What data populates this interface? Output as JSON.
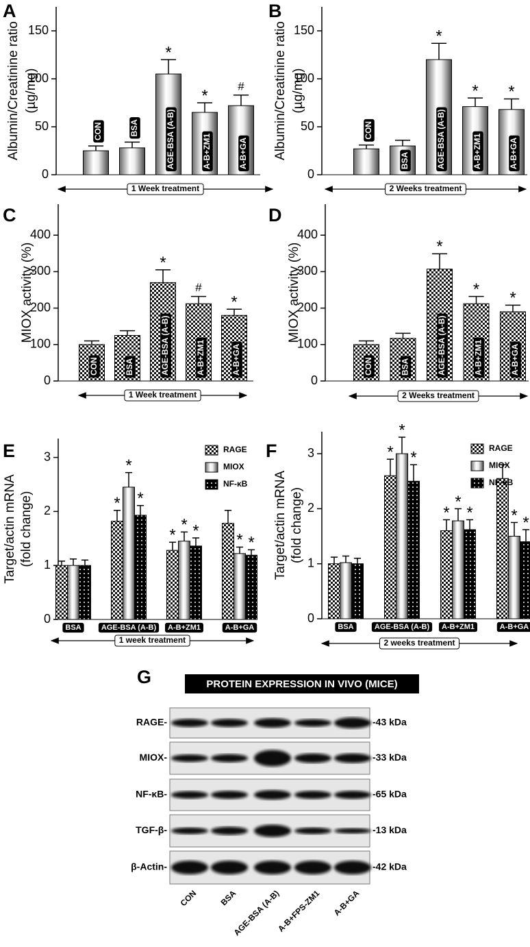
{
  "chart_data": [
    {
      "type": "bar",
      "panel": "A",
      "ylabel": [
        "Albumin/Creatinine ratio",
        "(µg/mg)"
      ],
      "categories": [
        "CON",
        "BSA",
        "AGE-BSA (A-B)",
        "A-B+ZM1",
        "A-B+GA"
      ],
      "values": [
        25,
        28,
        105,
        65,
        72
      ],
      "errors": [
        5,
        6,
        15,
        10,
        11
      ],
      "annotations": [
        null,
        null,
        "*",
        "*",
        "#"
      ],
      "pattern": "gradient",
      "ylim": [
        0,
        175
      ],
      "yticks": [
        0,
        50,
        100,
        150
      ],
      "treatment": "1 Week treatment"
    },
    {
      "type": "bar",
      "panel": "B",
      "ylabel": [
        "Albumin/Creatinine ratio",
        "(µg/mg)"
      ],
      "categories": [
        "CON",
        "BSA",
        "AGE-BSA (A-B)",
        "A-B+ZM1",
        "A-B+GA"
      ],
      "values": [
        27,
        30,
        120,
        71,
        68
      ],
      "errors": [
        4,
        6,
        17,
        9,
        11
      ],
      "annotations": [
        null,
        null,
        "*",
        "*",
        "*"
      ],
      "pattern": "gradient",
      "ylim": [
        0,
        175
      ],
      "yticks": [
        0,
        50,
        100,
        150
      ],
      "treatment": "2 Weeks treatment"
    },
    {
      "type": "bar",
      "panel": "C",
      "ylabel": [
        "MIOX activity (%)"
      ],
      "categories": [
        "CON",
        "BSA",
        "AGE-BSA (A-B)",
        "A-B+ZM1",
        "A-B+GA"
      ],
      "values": [
        100,
        125,
        270,
        212,
        180
      ],
      "errors": [
        10,
        13,
        35,
        20,
        17
      ],
      "annotations": [
        null,
        null,
        "*",
        "#",
        "*"
      ],
      "pattern": "checker",
      "ylim": [
        0,
        485
      ],
      "yticks": [
        0,
        100,
        200,
        300,
        400
      ],
      "treatment": "1 Week treatment"
    },
    {
      "type": "bar",
      "panel": "D",
      "ylabel": [
        "MIOX activity (%)"
      ],
      "categories": [
        "CON",
        "BSA",
        "AGE-BSA (A-B)",
        "A-B+ZM1",
        "A-B+GA"
      ],
      "values": [
        100,
        117,
        307,
        212,
        190
      ],
      "errors": [
        10,
        14,
        42,
        20,
        18
      ],
      "annotations": [
        null,
        null,
        "*",
        "*",
        "*"
      ],
      "pattern": "checker",
      "ylim": [
        0,
        485
      ],
      "yticks": [
        0,
        100,
        200,
        300,
        400
      ],
      "treatment": "2 Weeks treatment"
    },
    {
      "type": "grouped_bar",
      "panel": "E",
      "ylabel": [
        "Target/actin mRNA",
        "(fold change)"
      ],
      "categories": [
        "BSA",
        "AGE-BSA (A-B)",
        "A-B+ZM1",
        "A-B+GA"
      ],
      "ylim": [
        0,
        3.35
      ],
      "yticks": [
        0,
        1,
        2,
        3
      ],
      "treatment": "1 week treatment",
      "series": [
        {
          "name": "RAGE",
          "pattern": "checker",
          "values": [
            1.0,
            1.82,
            1.28,
            1.78
          ],
          "errors": [
            0.08,
            0.2,
            0.15,
            0.24
          ],
          "annotations": [
            null,
            "*",
            "*",
            null
          ]
        },
        {
          "name": "MIOX",
          "pattern": "gradient",
          "values": [
            1.0,
            2.45,
            1.45,
            1.22
          ],
          "errors": [
            0.12,
            0.27,
            0.17,
            0.12
          ],
          "annotations": [
            null,
            "*",
            "*",
            "*"
          ]
        },
        {
          "name": "NF-κB",
          "pattern": "dots",
          "values": [
            1.0,
            1.93,
            1.36,
            1.19
          ],
          "errors": [
            0.1,
            0.18,
            0.15,
            0.1
          ],
          "annotations": [
            null,
            "*",
            "*",
            "*"
          ]
        }
      ]
    },
    {
      "type": "grouped_bar",
      "panel": "F",
      "ylabel": [
        "Target/actin mRNA",
        "(fold change)"
      ],
      "categories": [
        "BSA",
        "AGE-BSA (A-B)",
        "A-B+ZM1",
        "A-B+GA"
      ],
      "ylim": [
        0,
        3.4
      ],
      "yticks": [
        0,
        1,
        2,
        3
      ],
      "treatment": "2 weeks treatment",
      "series": [
        {
          "name": "RAGE",
          "pattern": "checker",
          "values": [
            1.0,
            2.6,
            1.6,
            2.55
          ],
          "errors": [
            0.12,
            0.3,
            0.2,
            0.25
          ],
          "annotations": [
            null,
            "*",
            "*",
            null
          ]
        },
        {
          "name": "MIOX",
          "pattern": "gradient",
          "values": [
            1.02,
            3.0,
            1.78,
            1.5
          ],
          "errors": [
            0.12,
            0.3,
            0.22,
            0.25
          ],
          "annotations": [
            null,
            "*",
            "*",
            "*"
          ]
        },
        {
          "name": "NF-κB",
          "pattern": "dots",
          "values": [
            1.0,
            2.5,
            1.62,
            1.4
          ],
          "errors": [
            0.1,
            0.3,
            0.18,
            0.22
          ],
          "annotations": [
            null,
            "*",
            "*",
            "*"
          ]
        }
      ]
    }
  ],
  "blot": {
    "panel": "G",
    "title": "PROTEIN EXPRESSION IN VIVO (MICE)",
    "rows": [
      {
        "protein": "RAGE-",
        "size": "-43 kDa"
      },
      {
        "protein": "MIOX-",
        "size": "-33 kDa"
      },
      {
        "protein": "NF-κB-",
        "size": "-65 kDa"
      },
      {
        "protein": "TGF-β-",
        "size": "-13 kDa"
      },
      {
        "protein": "β-Actin-",
        "size": "-42 kDa"
      }
    ],
    "lanes": [
      "CON",
      "BSA",
      "AGE-BSA (A-B)",
      "A-B+FPS-ZM1",
      "A-B+GA"
    ]
  }
}
